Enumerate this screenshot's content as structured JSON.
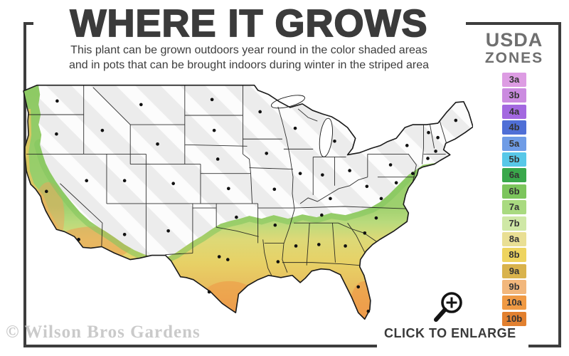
{
  "header": {
    "title": "WHERE IT GROWS",
    "subtitle_line1": "This plant can be grown outdoors year round in the color shaded areas",
    "subtitle_line2": "and in pots that can be brought indoors during winter in the striped area"
  },
  "legend": {
    "title_line1": "USDA",
    "title_line2": "ZONES",
    "zones": [
      {
        "label": "3a",
        "color": "#dd9ce3"
      },
      {
        "label": "3b",
        "color": "#cb8be0"
      },
      {
        "label": "4a",
        "color": "#a368e0"
      },
      {
        "label": "4b",
        "color": "#4f6fd6"
      },
      {
        "label": "5a",
        "color": "#6f9ce6"
      },
      {
        "label": "5b",
        "color": "#58c8e8"
      },
      {
        "label": "6a",
        "color": "#39a84b"
      },
      {
        "label": "6b",
        "color": "#7cc55c"
      },
      {
        "label": "7a",
        "color": "#a9da80"
      },
      {
        "label": "7b",
        "color": "#cfe8a6"
      },
      {
        "label": "8a",
        "color": "#e9df94"
      },
      {
        "label": "8b",
        "color": "#eed45f"
      },
      {
        "label": "9a",
        "color": "#d9b34c"
      },
      {
        "label": "9b",
        "color": "#f2b77c"
      },
      {
        "label": "10a",
        "color": "#f09a44"
      },
      {
        "label": "10b",
        "color": "#e2802f"
      }
    ]
  },
  "map": {
    "name": "usa-hardiness-zones-map",
    "striped_fill": "#ececec",
    "stripe_color": "#ffffff",
    "outline_color": "#1a1a1a",
    "city_dot_color": "#111111"
  },
  "footer": {
    "watermark": "© Wilson Bros Gardens",
    "enlarge_label": "CLICK TO ENLARGE",
    "enlarge_icon": "magnifier-plus-icon"
  },
  "colors": {
    "frame": "#3d3d3d",
    "title": "#3b3b3b",
    "subtitle": "#3d3d3d",
    "legend_title": "#6f6f6f",
    "watermark": "#cacaca"
  }
}
